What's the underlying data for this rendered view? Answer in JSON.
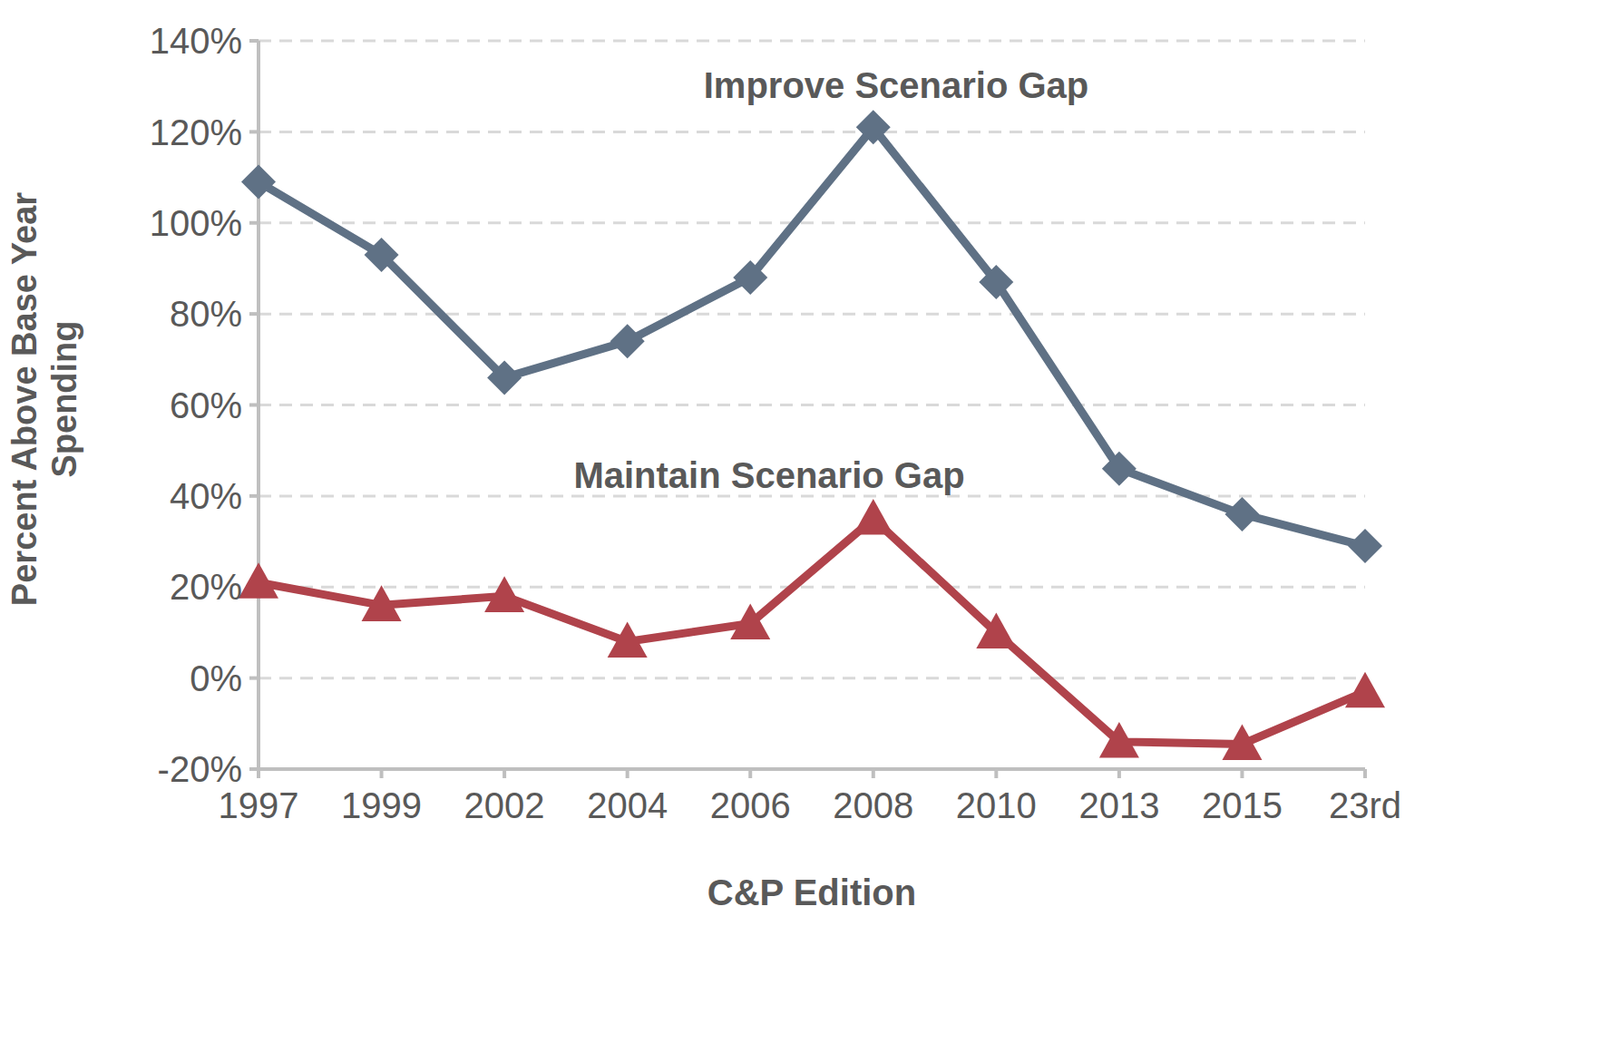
{
  "chart_data": {
    "type": "line",
    "x_label": "C&P Edition",
    "y_label": "Percent Above Base Year Spending",
    "categories": [
      "1997",
      "1999",
      "2002",
      "2004",
      "2006",
      "2008",
      "2010",
      "2013",
      "2015",
      "23rd"
    ],
    "series": [
      {
        "name": "Improve Scenario Gap",
        "color": "#5f7185",
        "marker": "diamond",
        "values": [
          109,
          93,
          66,
          74,
          88,
          121,
          87,
          46,
          36,
          29
        ]
      },
      {
        "name": "Maintain Scenario Gap",
        "color": "#b0434b",
        "marker": "triangle",
        "values": [
          21,
          16,
          18,
          8,
          12,
          35,
          10,
          -14,
          -14.5,
          -3
        ]
      }
    ],
    "ylim": [
      -20,
      140
    ],
    "yticks": [
      {
        "value": -20,
        "label": "-20%"
      },
      {
        "value": 0,
        "label": "0%"
      },
      {
        "value": 20,
        "label": "20%"
      },
      {
        "value": 40,
        "label": "40%"
      },
      {
        "value": 60,
        "label": "60%"
      },
      {
        "value": 80,
        "label": "80%"
      },
      {
        "value": 100,
        "label": "100%"
      },
      {
        "value": 120,
        "label": "120%"
      },
      {
        "value": 140,
        "label": "140%"
      }
    ],
    "grid": true
  }
}
